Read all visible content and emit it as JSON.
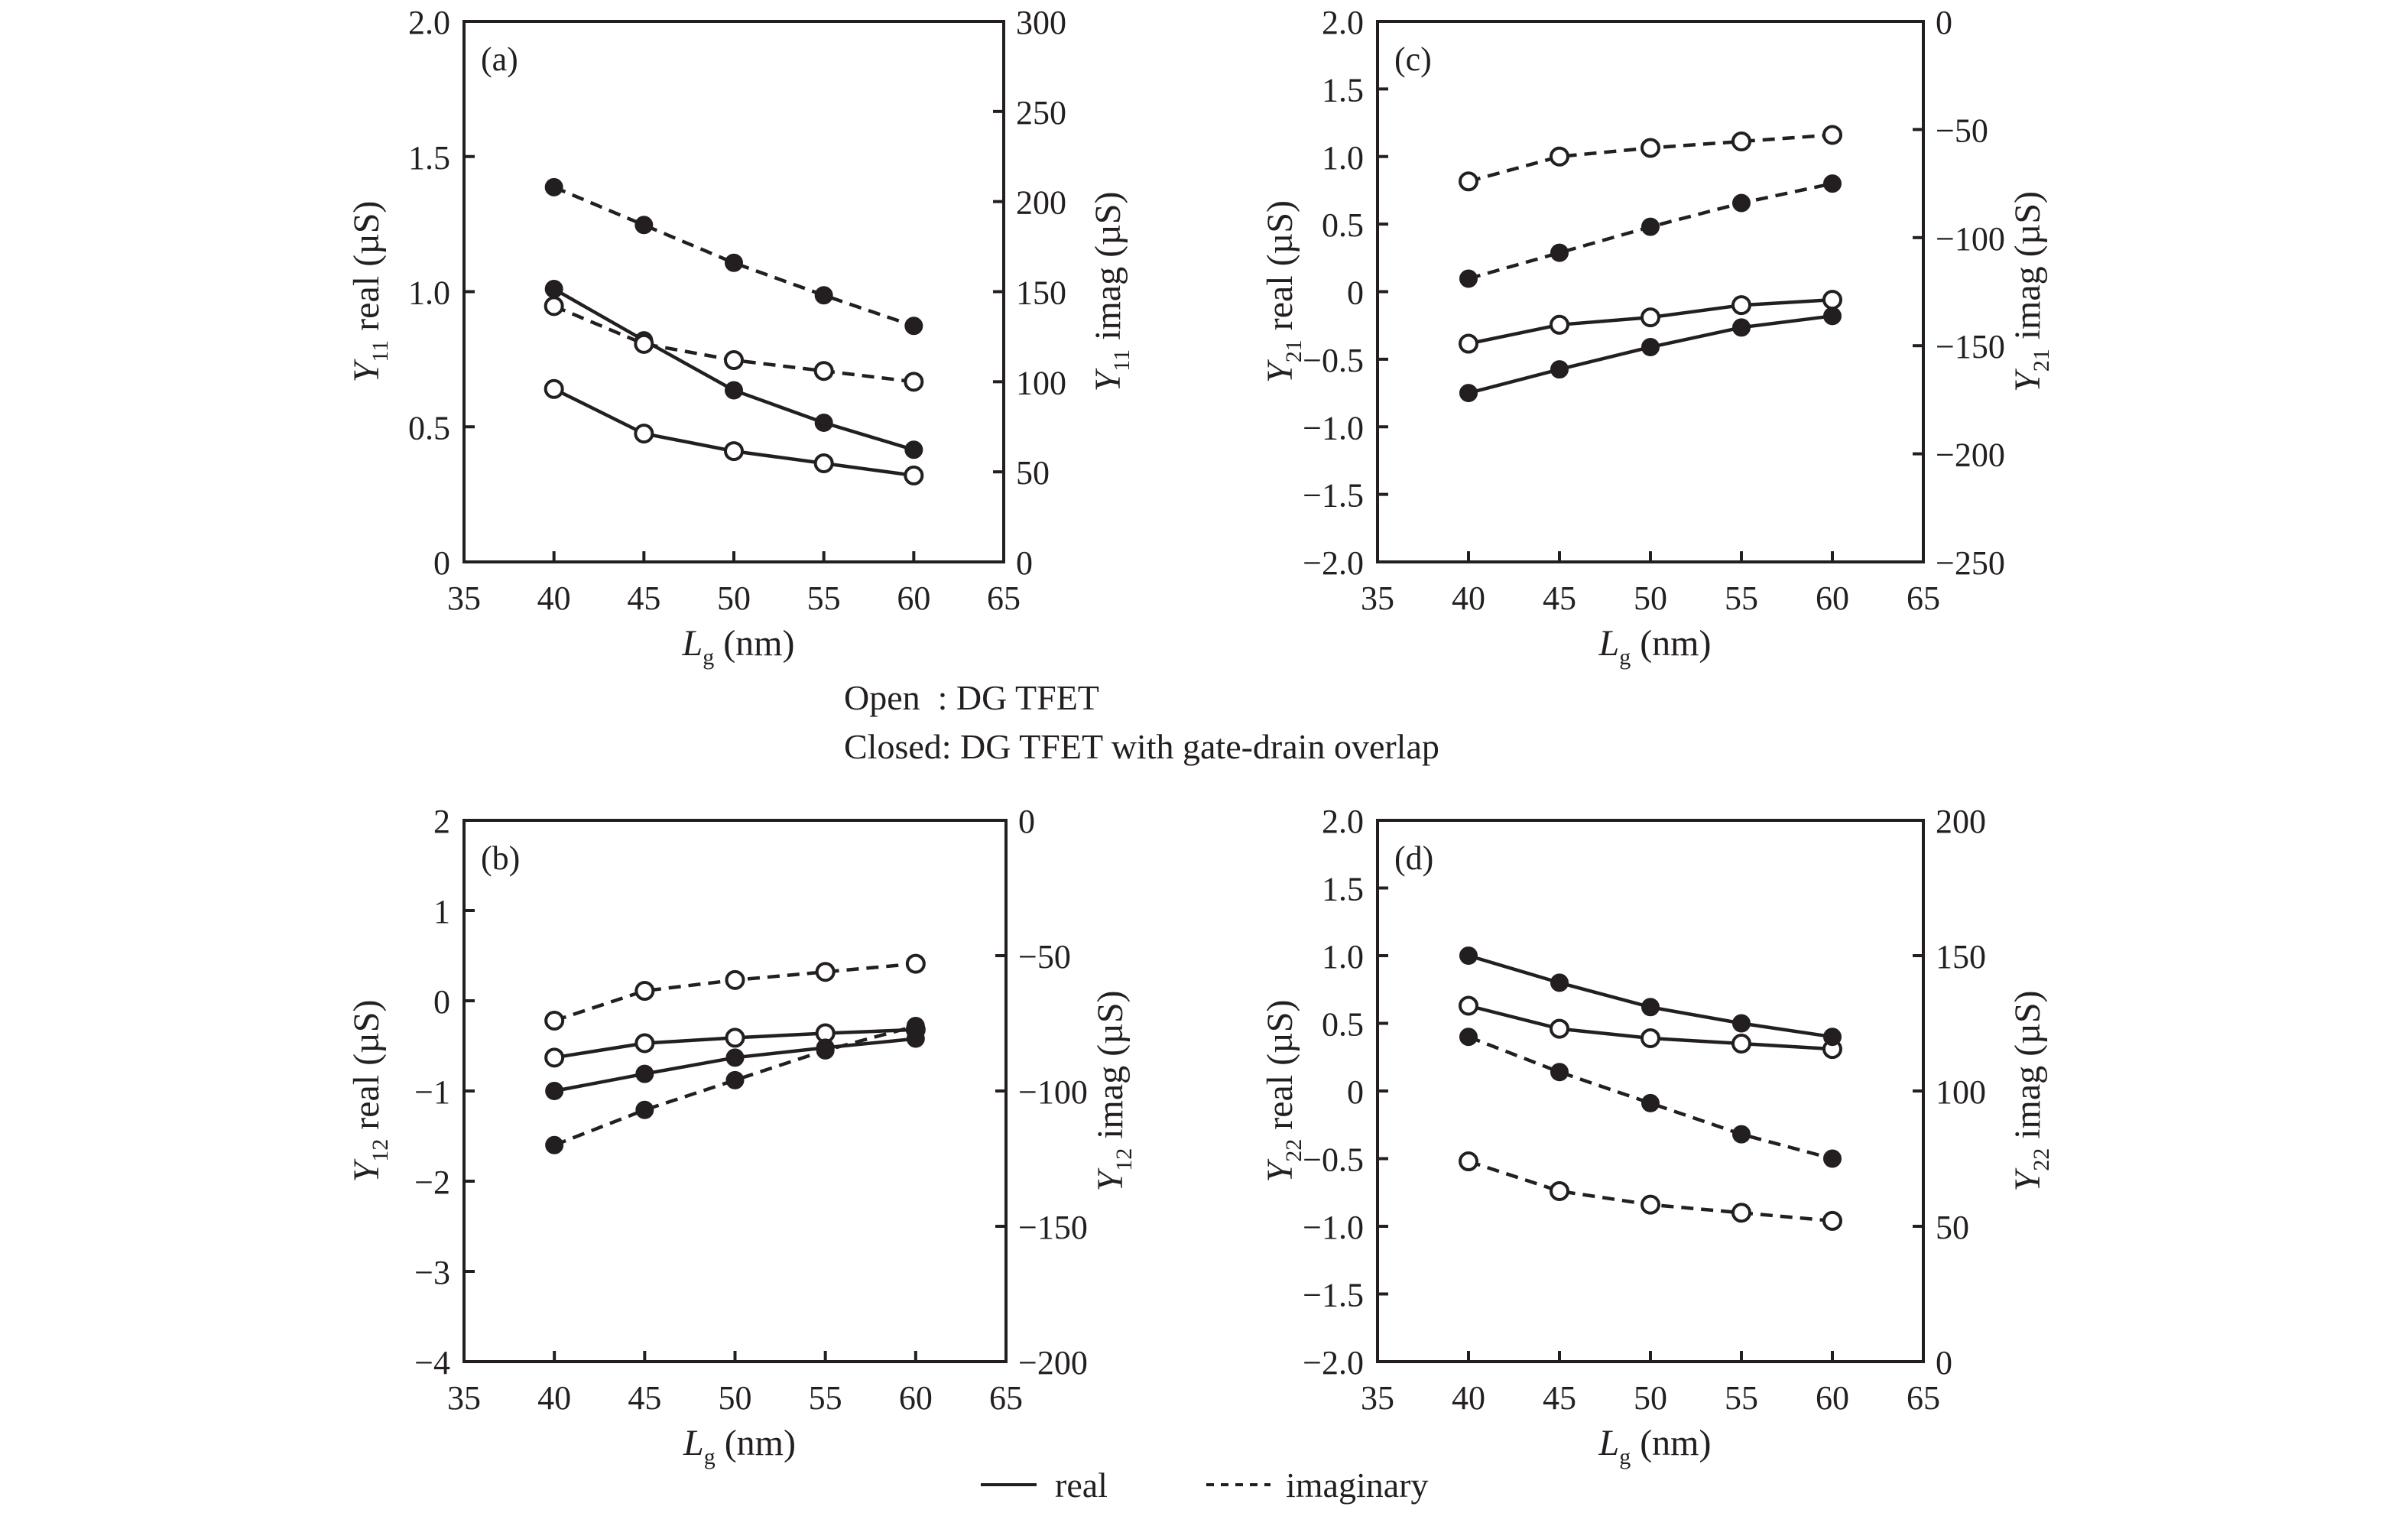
{
  "figure": {
    "note_open": "Open  : DG TFET",
    "note_closed": "Closed: DG TFET with gate-drain overlap",
    "legend": {
      "real_label": "real",
      "imag_label": "imaginary"
    },
    "colors": {
      "ink": "#231f20",
      "background": "#ffffff"
    }
  },
  "chart_data": [
    {
      "id": "a",
      "type": "line",
      "panel_tag": "(a)",
      "title": "",
      "xlabel_main": "L",
      "xlabel_sub": "g",
      "xlabel_unit": " (nm)",
      "ylabel_left_main": "Y",
      "ylabel_left_sub": "11",
      "ylabel_left_unit": " real (µS)",
      "ylabel_right_main": "Y",
      "ylabel_right_sub": "11",
      "ylabel_right_unit": " imag (µS)",
      "xlim": [
        35,
        65
      ],
      "xticks": [
        "35",
        "40",
        "45",
        "50",
        "55",
        "60",
        "65"
      ],
      "ylim_left": [
        0,
        2.0
      ],
      "yticks_left": [
        "0",
        "0.5",
        "1.0",
        "1.5",
        "2.0"
      ],
      "ylim_right": [
        0,
        300
      ],
      "yticks_right": [
        "0",
        "50",
        "100",
        "150",
        "200",
        "250",
        "300"
      ],
      "grid": false,
      "x": [
        40,
        45,
        50,
        55,
        60
      ],
      "series": [
        {
          "name": "DG TFET real",
          "marker": "open",
          "line": "solid",
          "axis": "left",
          "values": [
            0.64,
            0.475,
            0.41,
            0.365,
            0.32
          ]
        },
        {
          "name": "DG TFET with gate-drain overlap real",
          "marker": "closed",
          "line": "solid",
          "axis": "left",
          "values": [
            1.01,
            0.82,
            0.635,
            0.515,
            0.415
          ]
        },
        {
          "name": "DG TFET imaginary",
          "marker": "open",
          "line": "dashed",
          "axis": "right",
          "values": [
            142,
            121,
            112,
            106,
            100
          ]
        },
        {
          "name": "DG TFET with gate-drain overlap imaginary",
          "marker": "closed",
          "line": "dashed",
          "axis": "right",
          "values": [
            208,
            187,
            166,
            148,
            131
          ]
        }
      ]
    },
    {
      "id": "c",
      "type": "line",
      "panel_tag": "(c)",
      "title": "",
      "xlabel_main": "L",
      "xlabel_sub": "g",
      "xlabel_unit": " (nm)",
      "ylabel_left_main": "Y",
      "ylabel_left_sub": "21",
      "ylabel_left_unit": " real (µS)",
      "ylabel_right_main": "Y",
      "ylabel_right_sub": "21",
      "ylabel_right_unit": " imag (µS)",
      "xlim": [
        35,
        65
      ],
      "xticks": [
        "35",
        "40",
        "45",
        "50",
        "55",
        "60",
        "65"
      ],
      "ylim_left": [
        -2.0,
        2.0
      ],
      "yticks_left": [
        "−2.0",
        "−1.5",
        "−1.0",
        "−0.5",
        "0",
        "0.5",
        "1.0",
        "1.5",
        "2.0"
      ],
      "ylim_right": [
        -250,
        0
      ],
      "yticks_right": [
        "−250",
        "−200",
        "−150",
        "−100",
        "−50",
        "0"
      ],
      "grid": false,
      "x": [
        40,
        45,
        50,
        55,
        60
      ],
      "series": [
        {
          "name": "DG TFET real",
          "marker": "open",
          "line": "solid",
          "axis": "left",
          "values": [
            -0.385,
            -0.245,
            -0.19,
            -0.1,
            -0.06
          ]
        },
        {
          "name": "DG TFET with gate-drain overlap real",
          "marker": "closed",
          "line": "solid",
          "axis": "left",
          "values": [
            -0.75,
            -0.575,
            -0.41,
            -0.265,
            -0.18
          ]
        },
        {
          "name": "DG TFET imaginary",
          "marker": "open",
          "line": "dashed",
          "axis": "right",
          "values": [
            -74,
            -62.5,
            -58.5,
            -55.5,
            -52.5
          ]
        },
        {
          "name": "DG TFET with gate-drain overlap imaginary",
          "marker": "closed",
          "line": "dashed",
          "axis": "right",
          "values": [
            -119,
            -107,
            -95,
            -84,
            -75
          ]
        }
      ]
    },
    {
      "id": "b",
      "type": "line",
      "panel_tag": "(b)",
      "title": "",
      "xlabel_main": "L",
      "xlabel_sub": "g",
      "xlabel_unit": " (nm)",
      "ylabel_left_main": "Y",
      "ylabel_left_sub": "12",
      "ylabel_left_unit": " real (µS)",
      "ylabel_right_main": "Y",
      "ylabel_right_sub": "12",
      "ylabel_right_unit": " imag (µS)",
      "xlim": [
        35,
        65
      ],
      "xticks": [
        "35",
        "40",
        "45",
        "50",
        "55",
        "60",
        "65"
      ],
      "ylim_left": [
        -4,
        2
      ],
      "yticks_left": [
        "−4",
        "−3",
        "−2",
        "−1",
        "0",
        "1",
        "2"
      ],
      "ylim_right": [
        -200,
        0
      ],
      "yticks_right": [
        "−200",
        "−150",
        "−100",
        "−50",
        "0"
      ],
      "grid": false,
      "x": [
        40,
        45,
        50,
        55,
        60
      ],
      "series": [
        {
          "name": "DG TFET real",
          "marker": "open",
          "line": "solid",
          "axis": "left",
          "values": [
            -0.63,
            -0.47,
            -0.41,
            -0.36,
            -0.32
          ]
        },
        {
          "name": "DG TFET with gate-drain overlap real",
          "marker": "closed",
          "line": "solid",
          "axis": "left",
          "values": [
            -1.0,
            -0.81,
            -0.63,
            -0.52,
            -0.42
          ]
        },
        {
          "name": "DG TFET imaginary",
          "marker": "open",
          "line": "dashed",
          "axis": "right",
          "values": [
            -74,
            -63,
            -59,
            -56,
            -53
          ]
        },
        {
          "name": "DG TFET with gate-drain overlap imaginary",
          "marker": "closed",
          "line": "dashed",
          "axis": "right",
          "values": [
            -120,
            -107,
            -96,
            -85,
            -76
          ]
        }
      ]
    },
    {
      "id": "d",
      "type": "line",
      "panel_tag": "(d)",
      "title": "",
      "xlabel_main": "L",
      "xlabel_sub": "g",
      "xlabel_unit": " (nm)",
      "ylabel_left_main": "Y",
      "ylabel_left_sub": "22",
      "ylabel_left_unit": " real (µS)",
      "ylabel_right_main": "Y",
      "ylabel_right_sub": "22",
      "ylabel_right_unit": " imag (µS)",
      "xlim": [
        35,
        65
      ],
      "xticks": [
        "35",
        "40",
        "45",
        "50",
        "55",
        "60",
        "65"
      ],
      "ylim_left": [
        -2.0,
        2.0
      ],
      "yticks_left": [
        "−2.0",
        "−1.5",
        "−1.0",
        "−0.5",
        "0",
        "0.5",
        "1.0",
        "1.5",
        "2.0"
      ],
      "ylim_right": [
        0,
        200
      ],
      "yticks_right": [
        "0",
        "50",
        "100",
        "150",
        "200"
      ],
      "grid": false,
      "x": [
        40,
        45,
        50,
        55,
        60
      ],
      "series": [
        {
          "name": "DG TFET real",
          "marker": "open",
          "line": "solid",
          "axis": "left",
          "values": [
            0.63,
            0.46,
            0.39,
            0.35,
            0.31
          ]
        },
        {
          "name": "DG TFET with gate-drain overlap real",
          "marker": "closed",
          "line": "solid",
          "axis": "left",
          "values": [
            1.0,
            0.8,
            0.62,
            0.5,
            0.4
          ]
        },
        {
          "name": "DG TFET imaginary",
          "marker": "open",
          "line": "dashed",
          "axis": "right",
          "values": [
            74,
            63,
            58,
            55,
            52
          ]
        },
        {
          "name": "DG TFET with gate-drain overlap imaginary",
          "marker": "closed",
          "line": "dashed",
          "axis": "right",
          "values": [
            120,
            107,
            95.5,
            84,
            75
          ]
        }
      ]
    }
  ]
}
